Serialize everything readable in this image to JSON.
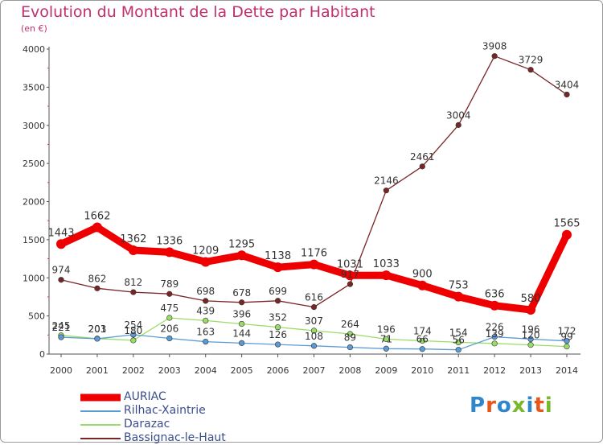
{
  "title": "Evolution du Montant de la Dette par Habitant",
  "unit": "(en €)",
  "brand": {
    "text": "Proxiti",
    "letter_colors": [
      "#2f86c8",
      "#e8561a",
      "#2f86c8",
      "#78b82a",
      "#2f86c8",
      "#e8561a",
      "#78b82a"
    ]
  },
  "chart_data": {
    "type": "line",
    "x": [
      "2000",
      "2001",
      "2002",
      "2003",
      "2004",
      "2005",
      "2006",
      "2007",
      "2008",
      "2009",
      "2010",
      "2011",
      "2012",
      "2013",
      "2014"
    ],
    "yticks": [
      "0",
      "500",
      "1000",
      "1500",
      "2000",
      "2500",
      "3000",
      "3500",
      "4000"
    ],
    "ylim": [
      0,
      4000
    ],
    "grid": false,
    "legend": "bottom-left",
    "series": [
      {
        "name": "AURIAC",
        "color": "#ee0000",
        "values": [
          1443,
          1662,
          1362,
          1336,
          1209,
          1295,
          1138,
          1176,
          1031,
          1033,
          900,
          753,
          636,
          580,
          1565
        ],
        "labels": [
          "1443",
          "1662",
          "1362",
          "1336",
          "1209",
          "1295",
          "1138",
          "1176",
          "1031",
          "1033",
          "900",
          "753",
          "636",
          "580",
          "1565"
        ]
      },
      {
        "name": "Rilhac-Xaintrie",
        "color": "#5a9bd5",
        "values": [
          221,
          201,
          254,
          206,
          163,
          144,
          126,
          108,
          89,
          71,
          66,
          56,
          226,
          196,
          172
        ],
        "labels": [
          "221",
          "201",
          "254",
          "206",
          "163",
          "144",
          "126",
          "108",
          "89",
          "71",
          "66",
          "56",
          "226",
          "196",
          "172"
        ]
      },
      {
        "name": "Darazac",
        "color": "#99dd66",
        "values": [
          245,
          203,
          180,
          475,
          439,
          396,
          352,
          307,
          264,
          196,
          174,
          154,
          139,
          120,
          99
        ],
        "labels": [
          "245",
          "203",
          "180",
          "475",
          "439",
          "396",
          "352",
          "307",
          "264",
          "196",
          "174",
          "154",
          "139",
          "120",
          "99"
        ]
      },
      {
        "name": "Bassignac-le-Haut",
        "color": "#7a2525",
        "values": [
          974,
          862,
          812,
          789,
          698,
          678,
          699,
          616,
          917,
          2146,
          2461,
          3004,
          3908,
          3729,
          3404
        ],
        "labels": [
          "974",
          "862",
          "812",
          "789",
          "698",
          "678",
          "699",
          "616",
          "917",
          "2146",
          "2461",
          "3004",
          "3908",
          "3729",
          "3404"
        ]
      }
    ]
  }
}
